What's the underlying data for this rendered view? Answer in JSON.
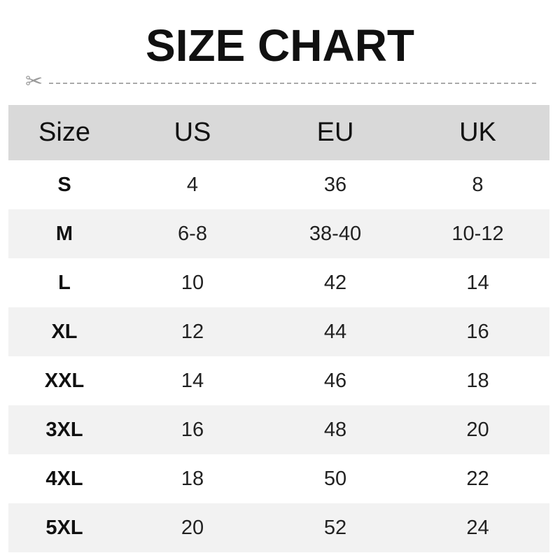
{
  "title": "SIZE CHART",
  "icons": {
    "cut_line": "scissors-icon"
  },
  "table": {
    "headers": [
      "Size",
      "US",
      "EU",
      "UK"
    ],
    "rows": [
      [
        "S",
        "4",
        "36",
        "8"
      ],
      [
        "M",
        "6-8",
        "38-40",
        "10-12"
      ],
      [
        "L",
        "10",
        "42",
        "14"
      ],
      [
        "XL",
        "12",
        "44",
        "16"
      ],
      [
        "XXL",
        "14",
        "46",
        "18"
      ],
      [
        "3XL",
        "16",
        "48",
        "20"
      ],
      [
        "4XL",
        "18",
        "50",
        "22"
      ],
      [
        "5XL",
        "20",
        "52",
        "24"
      ]
    ]
  },
  "colors": {
    "header_bg": "#d9d9d9",
    "alt_row_bg": "#f2f2f2"
  }
}
